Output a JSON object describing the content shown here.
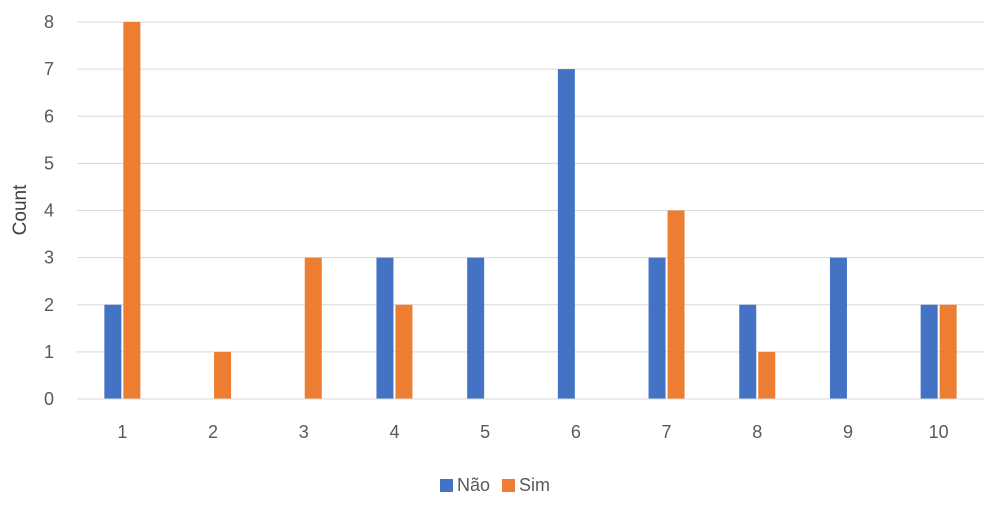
{
  "chart_data": {
    "type": "bar",
    "title": "",
    "xlabel": "",
    "ylabel": "Count",
    "categories": [
      "1",
      "2",
      "3",
      "4",
      "5",
      "6",
      "7",
      "8",
      "9",
      "10"
    ],
    "series": [
      {
        "name": "Não",
        "color": "#4472C4",
        "values": [
          2,
          0,
          0,
          3,
          3,
          7,
          3,
          2,
          3,
          2
        ]
      },
      {
        "name": "Sim",
        "color": "#ED7D31",
        "values": [
          8,
          1,
          3,
          2,
          0,
          0,
          4,
          1,
          0,
          2
        ]
      }
    ],
    "ylim": [
      0,
      8
    ],
    "yticks": [
      "0",
      "1",
      "2",
      "3",
      "4",
      "5",
      "6",
      "7",
      "8"
    ],
    "grid": true,
    "legend_position": "bottom"
  }
}
